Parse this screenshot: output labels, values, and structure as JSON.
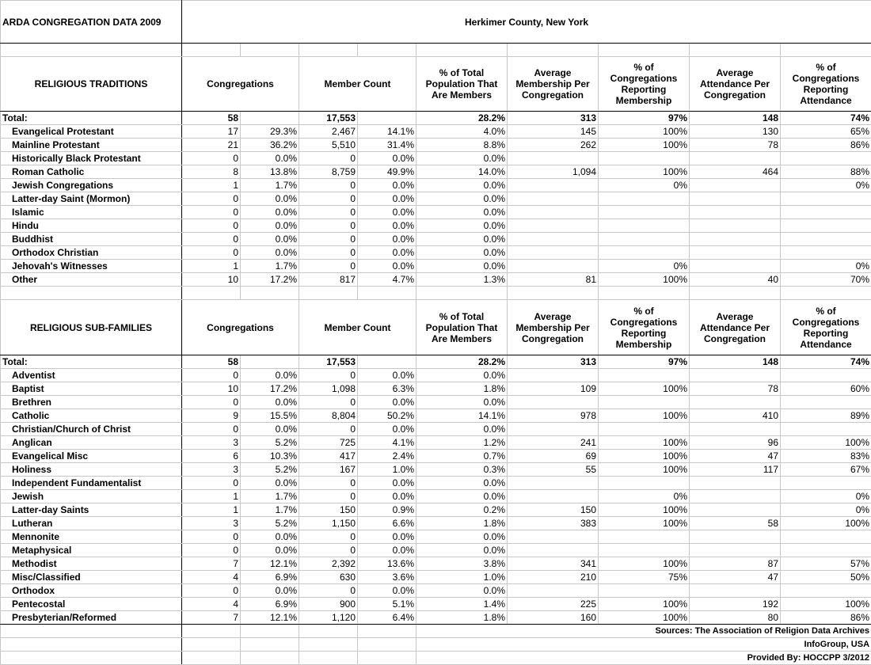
{
  "title": "ARDA CONGREGATION DATA 2009",
  "region": "Herkimer County, New York",
  "sections": [
    {
      "header": [
        "RELIGIOUS TRADITIONS",
        "Congregations",
        "Member Count",
        "% of Total Population That Are Members",
        "Average Membership Per Congregation",
        "% of Congregations Reporting Membership",
        "Average Attendance Per Congregation",
        "% of Congregations Reporting Attendance"
      ],
      "total": [
        "Total:",
        "58",
        null,
        "17,553",
        null,
        "28.2%",
        "313",
        "97%",
        "148",
        "74%"
      ],
      "rows": [
        [
          "Evangelical Protestant",
          "17",
          "29.3%",
          "2,467",
          "14.1%",
          "4.0%",
          "145",
          "100%",
          "130",
          "65%"
        ],
        [
          "Mainline Protestant",
          "21",
          "36.2%",
          "5,510",
          "31.4%",
          "8.8%",
          "262",
          "100%",
          "78",
          "86%"
        ],
        [
          "Historically Black Protestant",
          "0",
          "0.0%",
          "0",
          "0.0%",
          "0.0%",
          null,
          null,
          null,
          null
        ],
        [
          "Roman Catholic",
          "8",
          "13.8%",
          "8,759",
          "49.9%",
          "14.0%",
          "1,094",
          "100%",
          "464",
          "88%"
        ],
        [
          "Jewish Congregations",
          "1",
          "1.7%",
          "0",
          "0.0%",
          "0.0%",
          null,
          "0%",
          null,
          "0%"
        ],
        [
          "Latter-day Saint (Mormon)",
          "0",
          "0.0%",
          "0",
          "0.0%",
          "0.0%",
          null,
          null,
          null,
          null
        ],
        [
          "Islamic",
          "0",
          "0.0%",
          "0",
          "0.0%",
          "0.0%",
          null,
          null,
          null,
          null
        ],
        [
          "Hindu",
          "0",
          "0.0%",
          "0",
          "0.0%",
          "0.0%",
          null,
          null,
          null,
          null
        ],
        [
          "Buddhist",
          "0",
          "0.0%",
          "0",
          "0.0%",
          "0.0%",
          null,
          null,
          null,
          null
        ],
        [
          "Orthodox Christian",
          "0",
          "0.0%",
          "0",
          "0.0%",
          "0.0%",
          null,
          null,
          null,
          null
        ],
        [
          "Jehovah's Witnesses",
          "1",
          "1.7%",
          "0",
          "0.0%",
          "0.0%",
          null,
          "0%",
          null,
          "0%"
        ],
        [
          "Other",
          "10",
          "17.2%",
          "817",
          "4.7%",
          "1.3%",
          "81",
          "100%",
          "40",
          "70%"
        ]
      ]
    },
    {
      "header": [
        "RELIGIOUS SUB-FAMILIES",
        "Congregations",
        "Member Count",
        "% of Total Population That Are Members",
        "Average Membership Per Congregation",
        "% of Congregations Reporting Membership",
        "Average Attendance Per Congregation",
        "% of Congregations Reporting Attendance"
      ],
      "total": [
        "Total:",
        "58",
        null,
        "17,553",
        null,
        "28.2%",
        "313",
        "97%",
        "148",
        "74%"
      ],
      "rows": [
        [
          "Adventist",
          "0",
          "0.0%",
          "0",
          "0.0%",
          "0.0%",
          null,
          null,
          null,
          null
        ],
        [
          "Baptist",
          "10",
          "17.2%",
          "1,098",
          "6.3%",
          "1.8%",
          "109",
          "100%",
          "78",
          "60%"
        ],
        [
          "Brethren",
          "0",
          "0.0%",
          "0",
          "0.0%",
          "0.0%",
          null,
          null,
          null,
          null
        ],
        [
          "Catholic",
          "9",
          "15.5%",
          "8,804",
          "50.2%",
          "14.1%",
          "978",
          "100%",
          "410",
          "89%"
        ],
        [
          "Christian/Church of Christ",
          "0",
          "0.0%",
          "0",
          "0.0%",
          "0.0%",
          null,
          null,
          null,
          null
        ],
        [
          "Anglican",
          "3",
          "5.2%",
          "725",
          "4.1%",
          "1.2%",
          "241",
          "100%",
          "96",
          "100%"
        ],
        [
          "Evangelical Misc",
          "6",
          "10.3%",
          "417",
          "2.4%",
          "0.7%",
          "69",
          "100%",
          "47",
          "83%"
        ],
        [
          "Holiness",
          "3",
          "5.2%",
          "167",
          "1.0%",
          "0.3%",
          "55",
          "100%",
          "117",
          "67%"
        ],
        [
          "Independent Fundamentalist",
          "0",
          "0.0%",
          "0",
          "0.0%",
          "0.0%",
          null,
          null,
          null,
          null
        ],
        [
          "Jewish",
          "1",
          "1.7%",
          "0",
          "0.0%",
          "0.0%",
          null,
          "0%",
          null,
          "0%"
        ],
        [
          "Latter-day Saints",
          "1",
          "1.7%",
          "150",
          "0.9%",
          "0.2%",
          "150",
          "100%",
          null,
          "0%"
        ],
        [
          "Lutheran",
          "3",
          "5.2%",
          "1,150",
          "6.6%",
          "1.8%",
          "383",
          "100%",
          "58",
          "100%"
        ],
        [
          "Mennonite",
          "0",
          "0.0%",
          "0",
          "0.0%",
          "0.0%",
          null,
          null,
          null,
          null
        ],
        [
          "Metaphysical",
          "0",
          "0.0%",
          "0",
          "0.0%",
          "0.0%",
          null,
          null,
          null,
          null
        ],
        [
          "Methodist",
          "7",
          "12.1%",
          "2,392",
          "13.6%",
          "3.8%",
          "341",
          "100%",
          "87",
          "57%"
        ],
        [
          "Misc/Classified",
          "4",
          "6.9%",
          "630",
          "3.6%",
          "1.0%",
          "210",
          "75%",
          "47",
          "50%"
        ],
        [
          "Orthodox",
          "0",
          "0.0%",
          "0",
          "0.0%",
          "0.0%",
          null,
          null,
          null,
          null
        ],
        [
          "Pentecostal",
          "4",
          "6.9%",
          "900",
          "5.1%",
          "1.4%",
          "225",
          "100%",
          "192",
          "100%"
        ],
        [
          "Presbyterian/Reformed",
          "7",
          "12.1%",
          "1,120",
          "6.4%",
          "1.8%",
          "160",
          "100%",
          "80",
          "86%"
        ]
      ]
    }
  ],
  "sources": [
    "Sources: The Association of Religion Data Archives",
    "InfoGroup, USA",
    "Provided By: HOCCPP 3/2012"
  ]
}
